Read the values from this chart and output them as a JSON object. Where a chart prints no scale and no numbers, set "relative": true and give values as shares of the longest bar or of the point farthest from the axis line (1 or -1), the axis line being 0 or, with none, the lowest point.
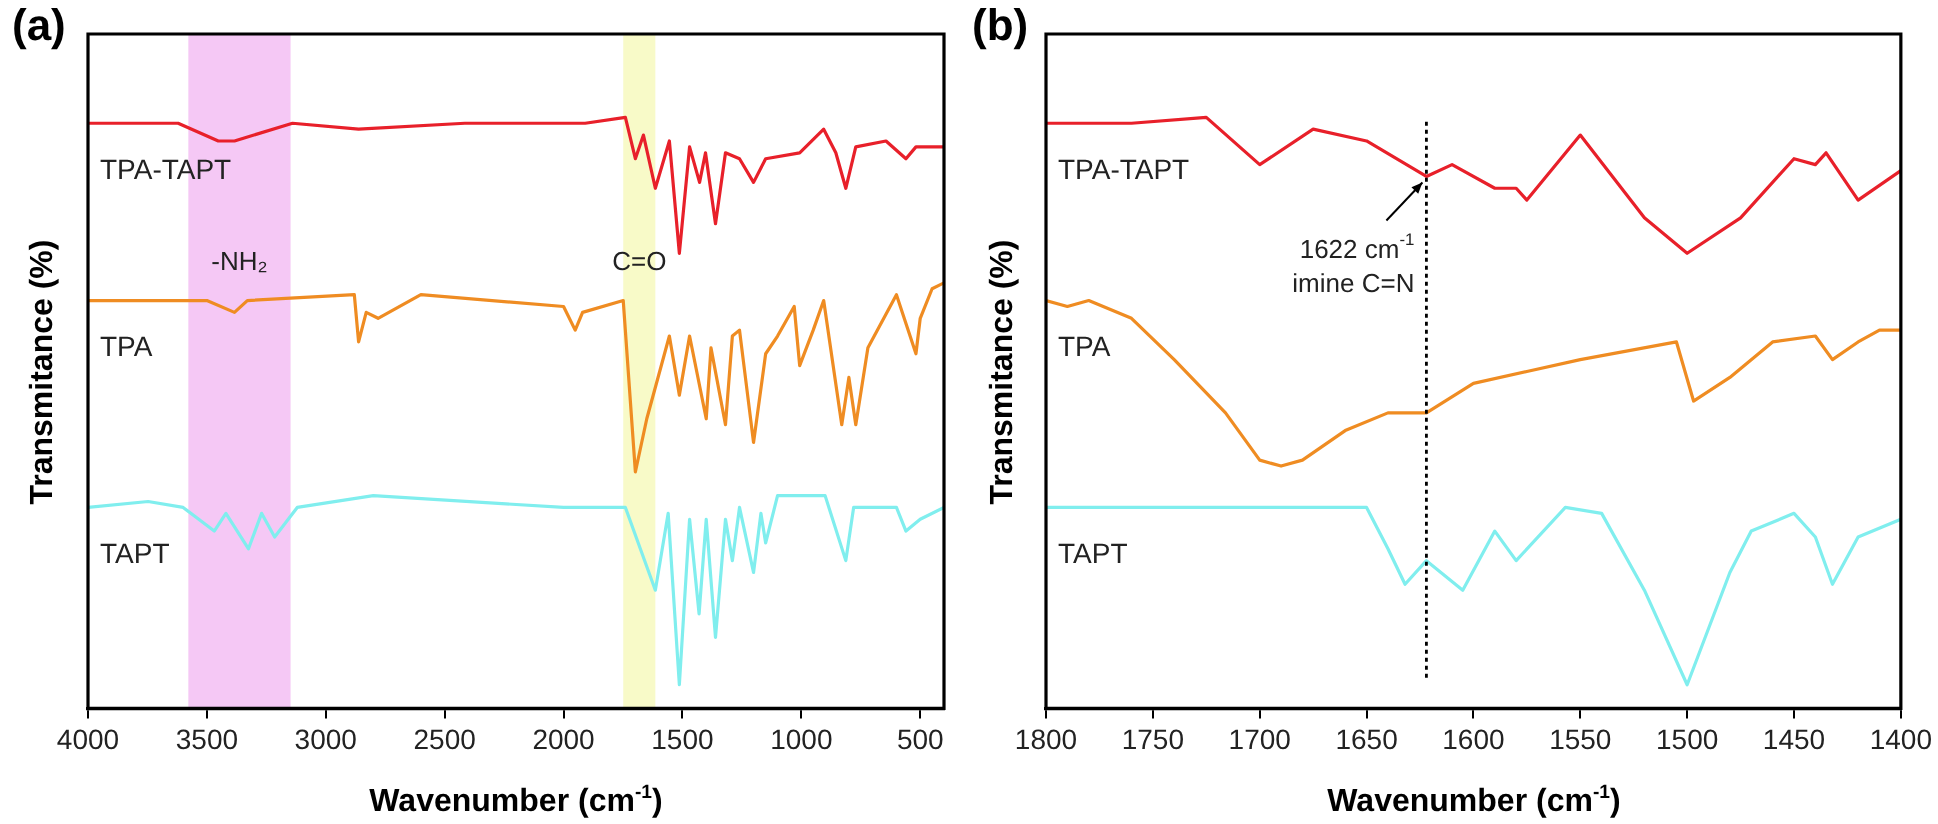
{
  "chart_data": [
    {
      "type": "line",
      "title": "(a)",
      "xlabel": "Wavenumber (cm$^{-1}$)",
      "ylabel": "Transmitance (%)",
      "relative": true,
      "legend": false,
      "grid": false,
      "xlim": [
        4000,
        400
      ],
      "xticks": [
        4000,
        3500,
        3000,
        2500,
        2000,
        1500,
        1000,
        500
      ],
      "bands": [
        {
          "axis": "x",
          "from": 3578,
          "to": 3148,
          "label": "-NH₂",
          "color": "#f5c8f5"
        },
        {
          "axis": "x",
          "from": 1749,
          "to": 1614,
          "label": "C=O",
          "color": "#f8fac8"
        }
      ],
      "series": [
        {
          "name": "TPA-TAPT",
          "color": "#e8202a",
          "x": [
            4000,
            3621,
            3452,
            3384,
            3140,
            2862,
            2415,
            1909,
            1740,
            1698,
            1664,
            1614,
            1555,
            1513,
            1470,
            1428,
            1403,
            1361,
            1319,
            1260,
            1201,
            1150,
            1007,
            906,
            855,
            813,
            771,
            644,
            560,
            518,
            400
          ],
          "values": [
            0.99,
            0.99,
            0.96,
            0.96,
            0.99,
            0.98,
            0.99,
            0.99,
            1.0,
            0.93,
            0.97,
            0.88,
            0.96,
            0.77,
            0.95,
            0.89,
            0.94,
            0.82,
            0.94,
            0.93,
            0.89,
            0.93,
            0.94,
            0.98,
            0.94,
            0.88,
            0.95,
            0.96,
            0.93,
            0.95,
            0.95
          ]
        },
        {
          "name": "TPA",
          "color": "#ef8c22",
          "x": [
            4000,
            3500,
            3384,
            3330,
            2880,
            2862,
            2830,
            2780,
            2600,
            2000,
            1951,
            1920,
            1749,
            1698,
            1650,
            1555,
            1513,
            1470,
            1400,
            1380,
            1319,
            1290,
            1260,
            1201,
            1150,
            1100,
            1030,
            1007,
            950,
            906,
            830,
            800,
            771,
            720,
            600,
            518,
            500,
            450,
            400
          ],
          "values": [
            0.69,
            0.69,
            0.67,
            0.69,
            0.7,
            0.62,
            0.67,
            0.66,
            0.7,
            0.68,
            0.64,
            0.67,
            0.69,
            0.4,
            0.49,
            0.63,
            0.53,
            0.63,
            0.49,
            0.61,
            0.48,
            0.63,
            0.64,
            0.45,
            0.6,
            0.63,
            0.68,
            0.58,
            0.64,
            0.69,
            0.48,
            0.56,
            0.48,
            0.61,
            0.7,
            0.6,
            0.66,
            0.71,
            0.72
          ]
        },
        {
          "name": "TAPT",
          "color": "#80eeee",
          "x": [
            4000,
            3747,
            3600,
            3469,
            3420,
            3325,
            3270,
            3215,
            3120,
            2800,
            2000,
            1740,
            1614,
            1560,
            1513,
            1470,
            1430,
            1400,
            1361,
            1319,
            1290,
            1260,
            1201,
            1170,
            1150,
            1100,
            900,
            813,
            780,
            600,
            560,
            500,
            400
          ],
          "values": [
            0.34,
            0.35,
            0.34,
            0.3,
            0.33,
            0.27,
            0.33,
            0.29,
            0.34,
            0.36,
            0.34,
            0.34,
            0.2,
            0.33,
            0.04,
            0.32,
            0.16,
            0.32,
            0.12,
            0.32,
            0.25,
            0.34,
            0.23,
            0.33,
            0.28,
            0.36,
            0.36,
            0.25,
            0.34,
            0.34,
            0.3,
            0.32,
            0.34
          ]
        }
      ]
    },
    {
      "type": "line",
      "title": "(b)",
      "xlabel": "Wavenumber (cm$^{-1}$)",
      "ylabel": "Transmitance (%)",
      "relative": true,
      "legend": false,
      "grid": false,
      "xlim": [
        1800,
        1400
      ],
      "xticks": [
        1800,
        1750,
        1700,
        1650,
        1600,
        1550,
        1500,
        1450,
        1400
      ],
      "ref_lines": [
        {
          "axis": "x",
          "value": 1622,
          "color": "#000000",
          "line_style": "dotted"
        }
      ],
      "annotations": [
        {
          "text": "1622 cm$^{-1}$\nimine C=N",
          "x": 1622,
          "y": 0.9
        }
      ],
      "series": [
        {
          "name": "TPA-TAPT",
          "color": "#e8202a",
          "x": [
            1800,
            1760,
            1725,
            1700,
            1675,
            1650,
            1622,
            1610,
            1590,
            1580,
            1575,
            1550,
            1520,
            1500,
            1475,
            1450,
            1440,
            1435,
            1420,
            1400
          ],
          "values": [
            0.99,
            0.99,
            1.0,
            0.92,
            0.98,
            0.96,
            0.9,
            0.92,
            0.88,
            0.88,
            0.86,
            0.97,
            0.83,
            0.77,
            0.83,
            0.93,
            0.92,
            0.94,
            0.86,
            0.91
          ]
        },
        {
          "name": "TPA",
          "color": "#ef8c22",
          "x": [
            1800,
            1790,
            1780,
            1760,
            1740,
            1716,
            1700,
            1690,
            1680,
            1660,
            1640,
            1622,
            1600,
            1575,
            1550,
            1505,
            1497,
            1480,
            1460,
            1440,
            1432,
            1420,
            1410,
            1400
          ],
          "values": [
            0.69,
            0.68,
            0.69,
            0.66,
            0.59,
            0.5,
            0.42,
            0.41,
            0.42,
            0.47,
            0.5,
            0.5,
            0.55,
            0.57,
            0.59,
            0.62,
            0.52,
            0.56,
            0.62,
            0.63,
            0.59,
            0.62,
            0.64,
            0.64
          ]
        },
        {
          "name": "TAPT",
          "color": "#80eeee",
          "x": [
            1800,
            1700,
            1650,
            1640,
            1632,
            1622,
            1605,
            1590,
            1580,
            1557,
            1540,
            1520,
            1500,
            1480,
            1470,
            1450,
            1440,
            1432,
            1420,
            1400
          ],
          "values": [
            0.34,
            0.34,
            0.34,
            0.27,
            0.21,
            0.25,
            0.2,
            0.3,
            0.25,
            0.34,
            0.33,
            0.2,
            0.04,
            0.23,
            0.3,
            0.33,
            0.29,
            0.21,
            0.29,
            0.32
          ]
        }
      ]
    }
  ]
}
